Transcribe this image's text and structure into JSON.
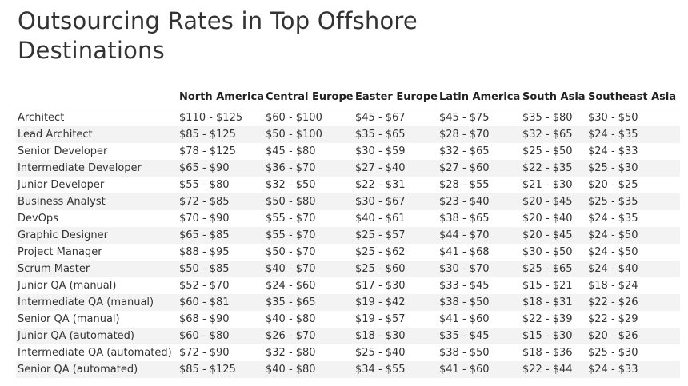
{
  "title": "Outsourcing Rates in Top Offshore Destinations",
  "columns": [
    "",
    "North America",
    "Central Europe",
    "Easter Europe",
    "Latin America",
    "South Asia",
    "Southeast Asia"
  ],
  "rows": [
    [
      "Architect",
      "$110 - $125",
      "$60 - $100",
      "$45 - $67",
      "$45 - $75",
      "$35 - $80",
      "$30 - $50"
    ],
    [
      "Lead Architect",
      "$85 - $125",
      "$50 - $100",
      "$35 - $65",
      "$28 - $70",
      "$32 - $65",
      "$24 - $35"
    ],
    [
      "Senior Developer",
      "$78 - $125",
      "$45 - $80",
      "$30 - $59",
      "$32 - $65",
      "$25 - $50",
      "$24 - $33"
    ],
    [
      "Intermediate Developer",
      "$65 - $90",
      "$36 - $70",
      "$27 - $40",
      "$27 - $60",
      "$22 - $35",
      "$25 - $30"
    ],
    [
      "Junior Developer",
      "$55 - $80",
      "$32 - $50",
      "$22 - $31",
      "$28 - $55",
      "$21 - $30",
      "$20 - $25"
    ],
    [
      "Business Analyst",
      "$72 - $85",
      "$50 - $80",
      "$30 - $67",
      "$23 - $40",
      "$20 - $45",
      "$25 - $35"
    ],
    [
      "DevOps",
      "$70 - $90",
      "$55 - $70",
      "$40 - $61",
      "$38 - $65",
      "$20 - $40",
      "$24 - $35"
    ],
    [
      "Graphic Designer",
      "$65 - $85",
      "$55 - $70",
      "$25 - $57",
      "$44 - $70",
      "$20 - $45",
      "$24 - $50"
    ],
    [
      "Project Manager",
      "$88 - $95",
      "$50 - $70",
      "$25 - $62",
      "$41 - $68",
      "$30 - $50",
      "$24 - $50"
    ],
    [
      "Scrum Master",
      "$50 - $85",
      "$40 - $70",
      "$25 - $60",
      "$30 - $70",
      "$25 - $65",
      "$24 - $40"
    ],
    [
      "Junior QA (manual)",
      "$52 - $70",
      "$24 - $60",
      "$17 - $30",
      "$33 - $45",
      "$15 - $21",
      "$18 - $24"
    ],
    [
      "Intermediate QA (manual)",
      "$60 - $81",
      "$35 - $65",
      "$19 - $42",
      "$38 - $50",
      "$18 - $31",
      "$22 - $26"
    ],
    [
      "Senior QA (manual)",
      "$68 - $90",
      "$40 - $80",
      "$19 - $57",
      "$41 - $60",
      "$22 - $39",
      "$22 - $29"
    ],
    [
      "Junior QA (automated)",
      "$60 - $80",
      "$26 - $70",
      "$18 - $30",
      "$35 - $45",
      "$15 - $30",
      "$20 - $26"
    ],
    [
      "Intermediate QA (automated)",
      "$72 - $90",
      "$32 - $80",
      "$25 - $40",
      "$38 - $50",
      "$18 - $36",
      "$25 - $30"
    ],
    [
      "Senior QA (automated)",
      "$85 - $125",
      "$40 - $80",
      "$34 - $55",
      "$41 - $60",
      "$22 - $44",
      "$24 - $33"
    ]
  ]
}
